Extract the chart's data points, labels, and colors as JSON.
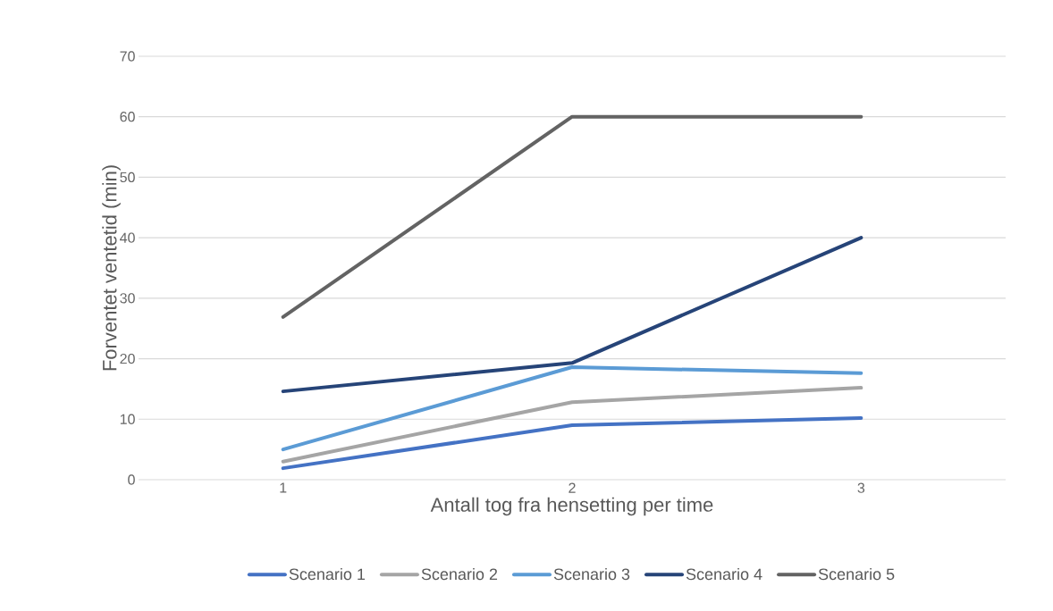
{
  "chart_data": {
    "type": "line",
    "xlabel": "Antall tog fra hensetting per time",
    "ylabel": "Forventet ventetid (min)",
    "categories": [
      "1",
      "2",
      "3"
    ],
    "series": [
      {
        "name": "Scenario 1",
        "color": "#4472c4",
        "values": [
          1.9,
          9.0,
          10.2
        ]
      },
      {
        "name": "Scenario 2",
        "color": "#a5a5a5",
        "values": [
          3.0,
          12.8,
          15.2
        ]
      },
      {
        "name": "Scenario 3",
        "color": "#5b9bd5",
        "values": [
          5.0,
          18.6,
          17.6
        ]
      },
      {
        "name": "Scenario 4",
        "color": "#264478",
        "values": [
          14.6,
          19.3,
          40
        ]
      },
      {
        "name": "Scenario 5",
        "color": "#636363",
        "values": [
          26.9,
          60,
          60
        ]
      }
    ],
    "ylim": [
      0,
      70
    ],
    "yticks": [
      0,
      10,
      20,
      30,
      40,
      50,
      60,
      70
    ],
    "grid": "y",
    "legend": "bottom",
    "marker": "none",
    "line_style": "solid"
  }
}
